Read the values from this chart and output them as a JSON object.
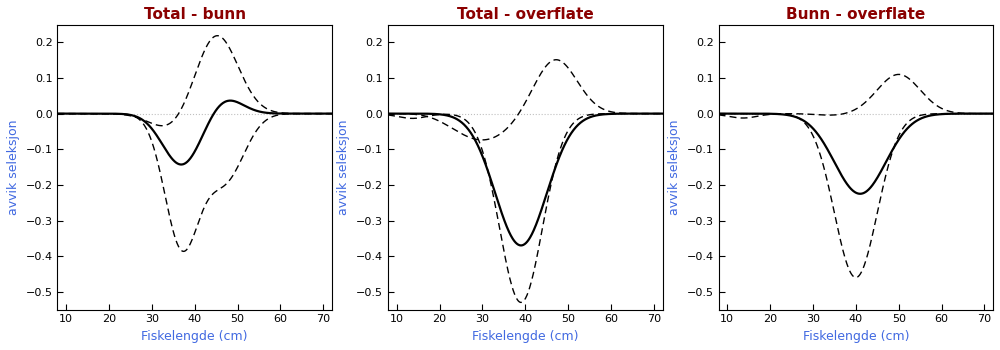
{
  "titles": [
    "Total - bunn",
    "Total - overflate",
    "Bunn - overflate"
  ],
  "xlabel": "Fiskelengde (cm)",
  "ylabel": "avvik seleksjon",
  "xlim": [
    8,
    72
  ],
  "ylim": [
    -0.55,
    0.25
  ],
  "yticks": [
    0.2,
    0.1,
    0.0,
    -0.1,
    -0.2,
    -0.3,
    -0.4,
    -0.5
  ],
  "xticks": [
    10,
    20,
    30,
    40,
    50,
    60,
    70
  ],
  "title_color": "#8B0000",
  "axis_color": "#4169E1",
  "background_color": "#FFFFFF",
  "line_color": "#000000",
  "hline_color": "#C0C0C0",
  "title_fontsize": 11,
  "label_fontsize": 9,
  "tick_fontsize": 8
}
